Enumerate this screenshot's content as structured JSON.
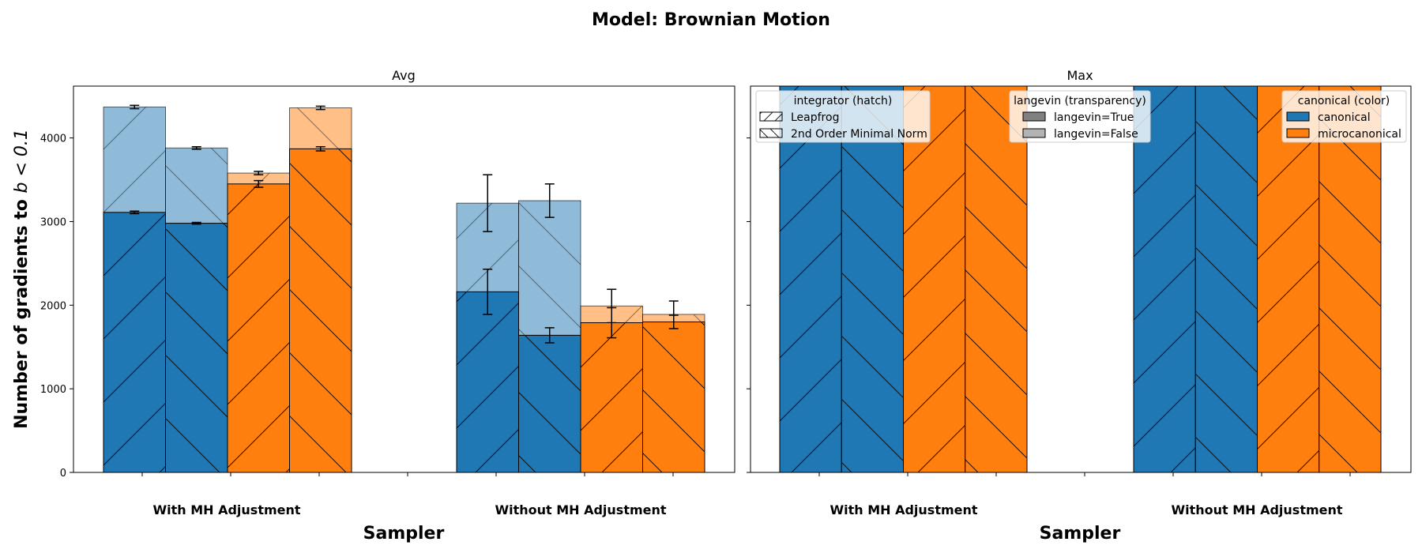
{
  "suptitle": "Model: Brownian Motion",
  "ylabel_prefix": "Number of gradients to ",
  "ylabel_math": "b < 0.1",
  "colors": {
    "canonical": "#1f77b4",
    "microcanonical": "#ff7f0e",
    "edge": "#000000"
  },
  "legends": {
    "integrator": {
      "title": "integrator (hatch)",
      "items": [
        "Leapfrog",
        "2nd Order Minimal Norm"
      ]
    },
    "langevin": {
      "title": "langevin (transparency)",
      "items": [
        "langevin=True",
        "langevin=False"
      ]
    },
    "canonical": {
      "title": "canonical (color)",
      "items": [
        "canonical",
        "microcanonical"
      ]
    }
  },
  "chart_data": [
    {
      "type": "bar",
      "title": "Avg",
      "xlabel": "Sampler",
      "ylabel": "Number of gradients to b < 0.1",
      "categories": [
        "With MH Adjustment",
        "Without MH Adjustment"
      ],
      "yticks": [
        0,
        1000,
        2000,
        3000,
        4000
      ],
      "ylim": [
        0,
        4620
      ],
      "series": [
        {
          "canonical": "canonical",
          "integrator": "Leapfrog",
          "langevin": "False",
          "values": [
            4370,
            3220
          ],
          "errors": [
            20,
            340
          ]
        },
        {
          "canonical": "canonical",
          "integrator": "Leapfrog",
          "langevin": "True",
          "values": [
            3110,
            2160
          ],
          "errors": [
            15,
            270
          ]
        },
        {
          "canonical": "canonical",
          "integrator": "2nd Order Minimal Norm",
          "langevin": "False",
          "values": [
            3880,
            3250
          ],
          "errors": [
            15,
            200
          ]
        },
        {
          "canonical": "canonical",
          "integrator": "2nd Order Minimal Norm",
          "langevin": "True",
          "values": [
            2980,
            1640
          ],
          "errors": [
            10,
            90
          ]
        },
        {
          "canonical": "microcanonical",
          "integrator": "Leapfrog",
          "langevin": "False",
          "values": [
            3580,
            1990
          ],
          "errors": [
            20,
            200
          ]
        },
        {
          "canonical": "microcanonical",
          "integrator": "Leapfrog",
          "langevin": "True",
          "values": [
            3450,
            1790
          ],
          "errors": [
            40,
            180
          ]
        },
        {
          "canonical": "microcanonical",
          "integrator": "2nd Order Minimal Norm",
          "langevin": "False",
          "values": [
            4360,
            1890
          ],
          "errors": [
            20,
            160
          ]
        },
        {
          "canonical": "microcanonical",
          "integrator": "2nd Order Minimal Norm",
          "langevin": "True",
          "values": [
            3870,
            1800
          ],
          "errors": [
            25,
            80
          ]
        }
      ]
    },
    {
      "type": "bar",
      "title": "Max",
      "xlabel": "Sampler",
      "categories": [
        "With MH Adjustment",
        "Without MH Adjustment"
      ],
      "ylim": [
        0,
        4620
      ],
      "series": [
        {
          "canonical": "canonical",
          "integrator": "Leapfrog",
          "langevin": "True",
          "values": [
            4620,
            4620
          ],
          "errors": [
            0,
            0
          ]
        },
        {
          "canonical": "canonical",
          "integrator": "2nd Order Minimal Norm",
          "langevin": "True",
          "values": [
            4620,
            4620
          ],
          "errors": [
            0,
            0
          ]
        },
        {
          "canonical": "microcanonical",
          "integrator": "Leapfrog",
          "langevin": "True",
          "values": [
            4620,
            4620
          ],
          "errors": [
            0,
            0
          ]
        },
        {
          "canonical": "microcanonical",
          "integrator": "2nd Order Minimal Norm",
          "langevin": "True",
          "values": [
            4620,
            4620
          ],
          "errors": [
            0,
            0
          ]
        }
      ]
    }
  ]
}
